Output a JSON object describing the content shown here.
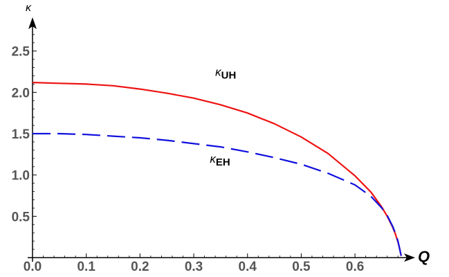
{
  "chart_data": {
    "type": "line",
    "xlabel": "Q",
    "ylabel": "κ",
    "xlim": [
      0.0,
      0.69
    ],
    "ylim": [
      0.0,
      2.9
    ],
    "x_ticks": [
      "0.0",
      "0.1",
      "0.2",
      "0.3",
      "0.4",
      "0.5",
      "0.6"
    ],
    "y_ticks": [
      "0.5",
      "1.0",
      "1.5",
      "2.0",
      "2.5"
    ],
    "grid": false,
    "series": [
      {
        "name": "κUH",
        "color": "#ee1111",
        "style": "solid",
        "x": [
          0.0,
          0.05,
          0.1,
          0.15,
          0.2,
          0.25,
          0.3,
          0.35,
          0.4,
          0.45,
          0.5,
          0.55,
          0.6,
          0.63,
          0.65,
          0.66,
          0.67,
          0.675,
          0.68,
          0.683,
          0.686
        ],
        "y": [
          2.12,
          2.11,
          2.1,
          2.08,
          2.04,
          1.99,
          1.93,
          1.85,
          1.75,
          1.62,
          1.46,
          1.26,
          0.99,
          0.79,
          0.61,
          0.5,
          0.37,
          0.29,
          0.19,
          0.11,
          0.02
        ]
      },
      {
        "name": "κEH",
        "color": "#1010dd",
        "style": "dashed",
        "x": [
          0.0,
          0.05,
          0.1,
          0.15,
          0.2,
          0.25,
          0.3,
          0.35,
          0.4,
          0.45,
          0.5,
          0.55,
          0.6,
          0.63,
          0.65,
          0.66,
          0.67,
          0.675,
          0.68,
          0.683,
          0.686
        ],
        "y": [
          1.5,
          1.5,
          1.49,
          1.47,
          1.45,
          1.42,
          1.38,
          1.34,
          1.28,
          1.21,
          1.13,
          1.02,
          0.88,
          0.74,
          0.6,
          0.51,
          0.38,
          0.3,
          0.2,
          0.11,
          0.02
        ]
      }
    ],
    "annotations": [
      {
        "text": "κ",
        "sub": "UH",
        "x": 0.34,
        "y": 2.2
      },
      {
        "text": "κ",
        "sub": "EH",
        "x": 0.33,
        "y": 1.15
      }
    ]
  }
}
